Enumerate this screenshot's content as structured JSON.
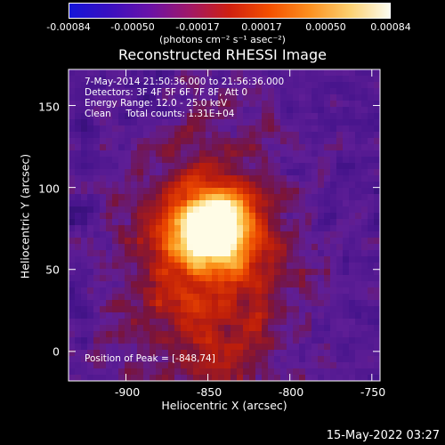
{
  "colorbar": {
    "ticks": [
      "-0.00084",
      "-0.00050",
      "-0.00017",
      "0.00017",
      "0.00050",
      "0.00084"
    ],
    "units": "(photons cm⁻² s⁻¹ asec⁻²)",
    "colors": [
      "#1414d8",
      "#3a10c0",
      "#6a12a8",
      "#a01868",
      "#d02010",
      "#f45000",
      "#fc9020",
      "#fcd070",
      "#fcfcf0"
    ]
  },
  "title": "Reconstructed RHESSI Image",
  "info": {
    "time_range": "7-May-2014 21:50:36.000 to 21:56:36.000",
    "detectors": "Detectors: 3F 4F 5F 6F 7F 8F, Att 0",
    "energy_range": "Energy Range: 12.0 - 25.0 keV",
    "method": "Clean     Total counts: 1.31E+04",
    "peak": "Position of Peak = [-848,74]"
  },
  "axes": {
    "xlabel": "Heliocentric X (arcsec)",
    "ylabel": "Heliocentric Y (arcsec)",
    "xticks": [
      "-900",
      "-850",
      "-800",
      "-750"
    ],
    "yticks": [
      "150",
      "100",
      "50",
      "0"
    ],
    "xrange": [
      -935,
      -745
    ],
    "yrange": [
      -18,
      172
    ]
  },
  "peak_position": [
    -848,
    74
  ],
  "timestamp": "15-May-2022 03:27"
}
